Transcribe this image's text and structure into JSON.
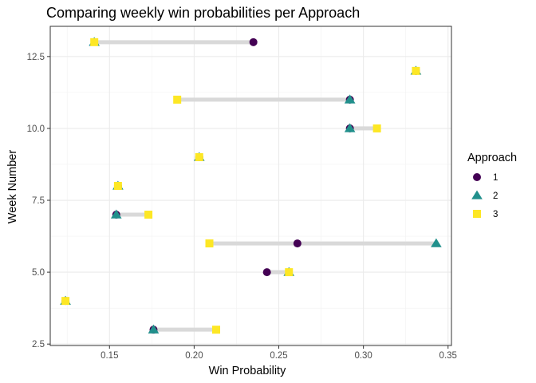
{
  "chart_data": {
    "type": "scatter",
    "title": "Comparing weekly win probabilities per Approach",
    "xlabel": "Win Probability",
    "ylabel": "Week Number",
    "xlim": [
      0.115,
      0.352
    ],
    "ylim": [
      2.45,
      13.55
    ],
    "x_ticks": [
      0.15,
      0.2,
      0.25,
      0.3,
      0.35
    ],
    "x_tick_labels": [
      "0.15",
      "0.20",
      "0.25",
      "0.30",
      "0.35"
    ],
    "y_ticks": [
      2.5,
      5.0,
      7.5,
      10.0,
      12.5
    ],
    "y_tick_labels": [
      "2.5",
      "5.0",
      "7.5",
      "10.0",
      "12.5"
    ],
    "grid": true,
    "legend_placement": "right",
    "legend_title": "Approach",
    "segment_color": "#d9d9d9",
    "series": [
      {
        "name": "1",
        "shape": "circle",
        "color": "#440154",
        "points": [
          {
            "week": 3,
            "prob": 0.176
          },
          {
            "week": 4,
            "prob": 0.124
          },
          {
            "week": 5,
            "prob": 0.243
          },
          {
            "week": 6,
            "prob": 0.261
          },
          {
            "week": 7,
            "prob": 0.154
          },
          {
            "week": 8,
            "prob": 0.155
          },
          {
            "week": 9,
            "prob": 0.203
          },
          {
            "week": 10,
            "prob": 0.292
          },
          {
            "week": 11,
            "prob": 0.292
          },
          {
            "week": 12,
            "prob": 0.331
          },
          {
            "week": 13,
            "prob": 0.235
          }
        ]
      },
      {
        "name": "2",
        "shape": "triangle",
        "color": "#21908c",
        "points": [
          {
            "week": 3,
            "prob": 0.176
          },
          {
            "week": 4,
            "prob": 0.124
          },
          {
            "week": 5,
            "prob": 0.256
          },
          {
            "week": 6,
            "prob": 0.343
          },
          {
            "week": 7,
            "prob": 0.154
          },
          {
            "week": 8,
            "prob": 0.155
          },
          {
            "week": 9,
            "prob": 0.203
          },
          {
            "week": 10,
            "prob": 0.292
          },
          {
            "week": 11,
            "prob": 0.292
          },
          {
            "week": 12,
            "prob": 0.331
          },
          {
            "week": 13,
            "prob": 0.141
          }
        ]
      },
      {
        "name": "3",
        "shape": "square",
        "color": "#fde725",
        "points": [
          {
            "week": 3,
            "prob": 0.213
          },
          {
            "week": 4,
            "prob": 0.124
          },
          {
            "week": 5,
            "prob": 0.256
          },
          {
            "week": 6,
            "prob": 0.209
          },
          {
            "week": 7,
            "prob": 0.173
          },
          {
            "week": 8,
            "prob": 0.155
          },
          {
            "week": 9,
            "prob": 0.203
          },
          {
            "week": 10,
            "prob": 0.308
          },
          {
            "week": 11,
            "prob": 0.19
          },
          {
            "week": 12,
            "prob": 0.331
          },
          {
            "week": 13,
            "prob": 0.141
          }
        ]
      }
    ]
  }
}
